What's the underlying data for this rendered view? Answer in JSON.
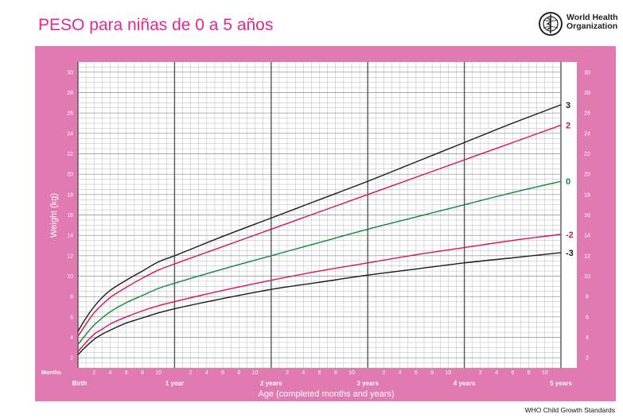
{
  "header": {
    "title": "PESO para niñas de 0 a 5 años",
    "organization_line1": "World Health",
    "organization_line2": "Organization",
    "footer": "WHO Child Growth Standards"
  },
  "colors": {
    "frame": "#e07ab0",
    "grid_major": "#555555",
    "grid_minor": "#a8a8a8",
    "sd3": "#1a1a1a",
    "sd2": "#d4174e",
    "sd0": "#0a8a3c"
  },
  "chart_data": {
    "type": "line",
    "title": "PESO para niñas de 0 a 5 años",
    "xlabel": "Age (completed months and years)",
    "ylabel": "Weight (kg)",
    "xlim": [
      0,
      60
    ],
    "ylim": [
      1,
      31
    ],
    "y_ticks": [
      2,
      4,
      6,
      8,
      10,
      12,
      14,
      16,
      18,
      20,
      22,
      24,
      26,
      28,
      30
    ],
    "month_axis_label": "Months",
    "month_ticks": [
      "2",
      "4",
      "6",
      "8",
      "10",
      "2",
      "4",
      "6",
      "8",
      "10",
      "2",
      "4",
      "6",
      "8",
      "10",
      "2",
      "4",
      "6",
      "8",
      "10",
      "2",
      "4",
      "6",
      "8",
      "10"
    ],
    "year_ticks": [
      "Birth",
      "1 year",
      "2 years",
      "3 years",
      "4 years",
      "5 years"
    ],
    "grid": true,
    "x": [
      0,
      1,
      2,
      3,
      4,
      6,
      8,
      10,
      12,
      18,
      24,
      30,
      36,
      42,
      48,
      54,
      60
    ],
    "series": [
      {
        "name": "3",
        "color": "#1a1a1a",
        "values": [
          4.6,
          5.9,
          7.0,
          7.9,
          8.6,
          9.6,
          10.5,
          11.4,
          12.0,
          13.9,
          15.7,
          17.5,
          19.3,
          21.2,
          23.1,
          25.0,
          26.8
        ]
      },
      {
        "name": "2",
        "color": "#d4174e",
        "values": [
          4.1,
          5.3,
          6.4,
          7.2,
          7.9,
          8.9,
          9.8,
          10.6,
          11.2,
          12.9,
          14.6,
          16.3,
          18.0,
          19.7,
          21.4,
          23.1,
          24.8
        ]
      },
      {
        "name": "0",
        "color": "#0a8a3c",
        "values": [
          3.3,
          4.3,
          5.2,
          5.9,
          6.5,
          7.4,
          8.1,
          8.8,
          9.3,
          10.7,
          12.0,
          13.3,
          14.6,
          15.8,
          17.0,
          18.2,
          19.3
        ]
      },
      {
        "name": "-2",
        "color": "#d4174e",
        "values": [
          2.6,
          3.5,
          4.3,
          4.8,
          5.3,
          6.0,
          6.6,
          7.1,
          7.5,
          8.6,
          9.6,
          10.5,
          11.3,
          12.1,
          12.8,
          13.5,
          14.1
        ]
      },
      {
        "name": "-3",
        "color": "#1a1a1a",
        "values": [
          2.3,
          3.1,
          3.8,
          4.3,
          4.7,
          5.4,
          5.9,
          6.4,
          6.8,
          7.8,
          8.7,
          9.4,
          10.1,
          10.7,
          11.3,
          11.8,
          12.3
        ]
      }
    ]
  }
}
